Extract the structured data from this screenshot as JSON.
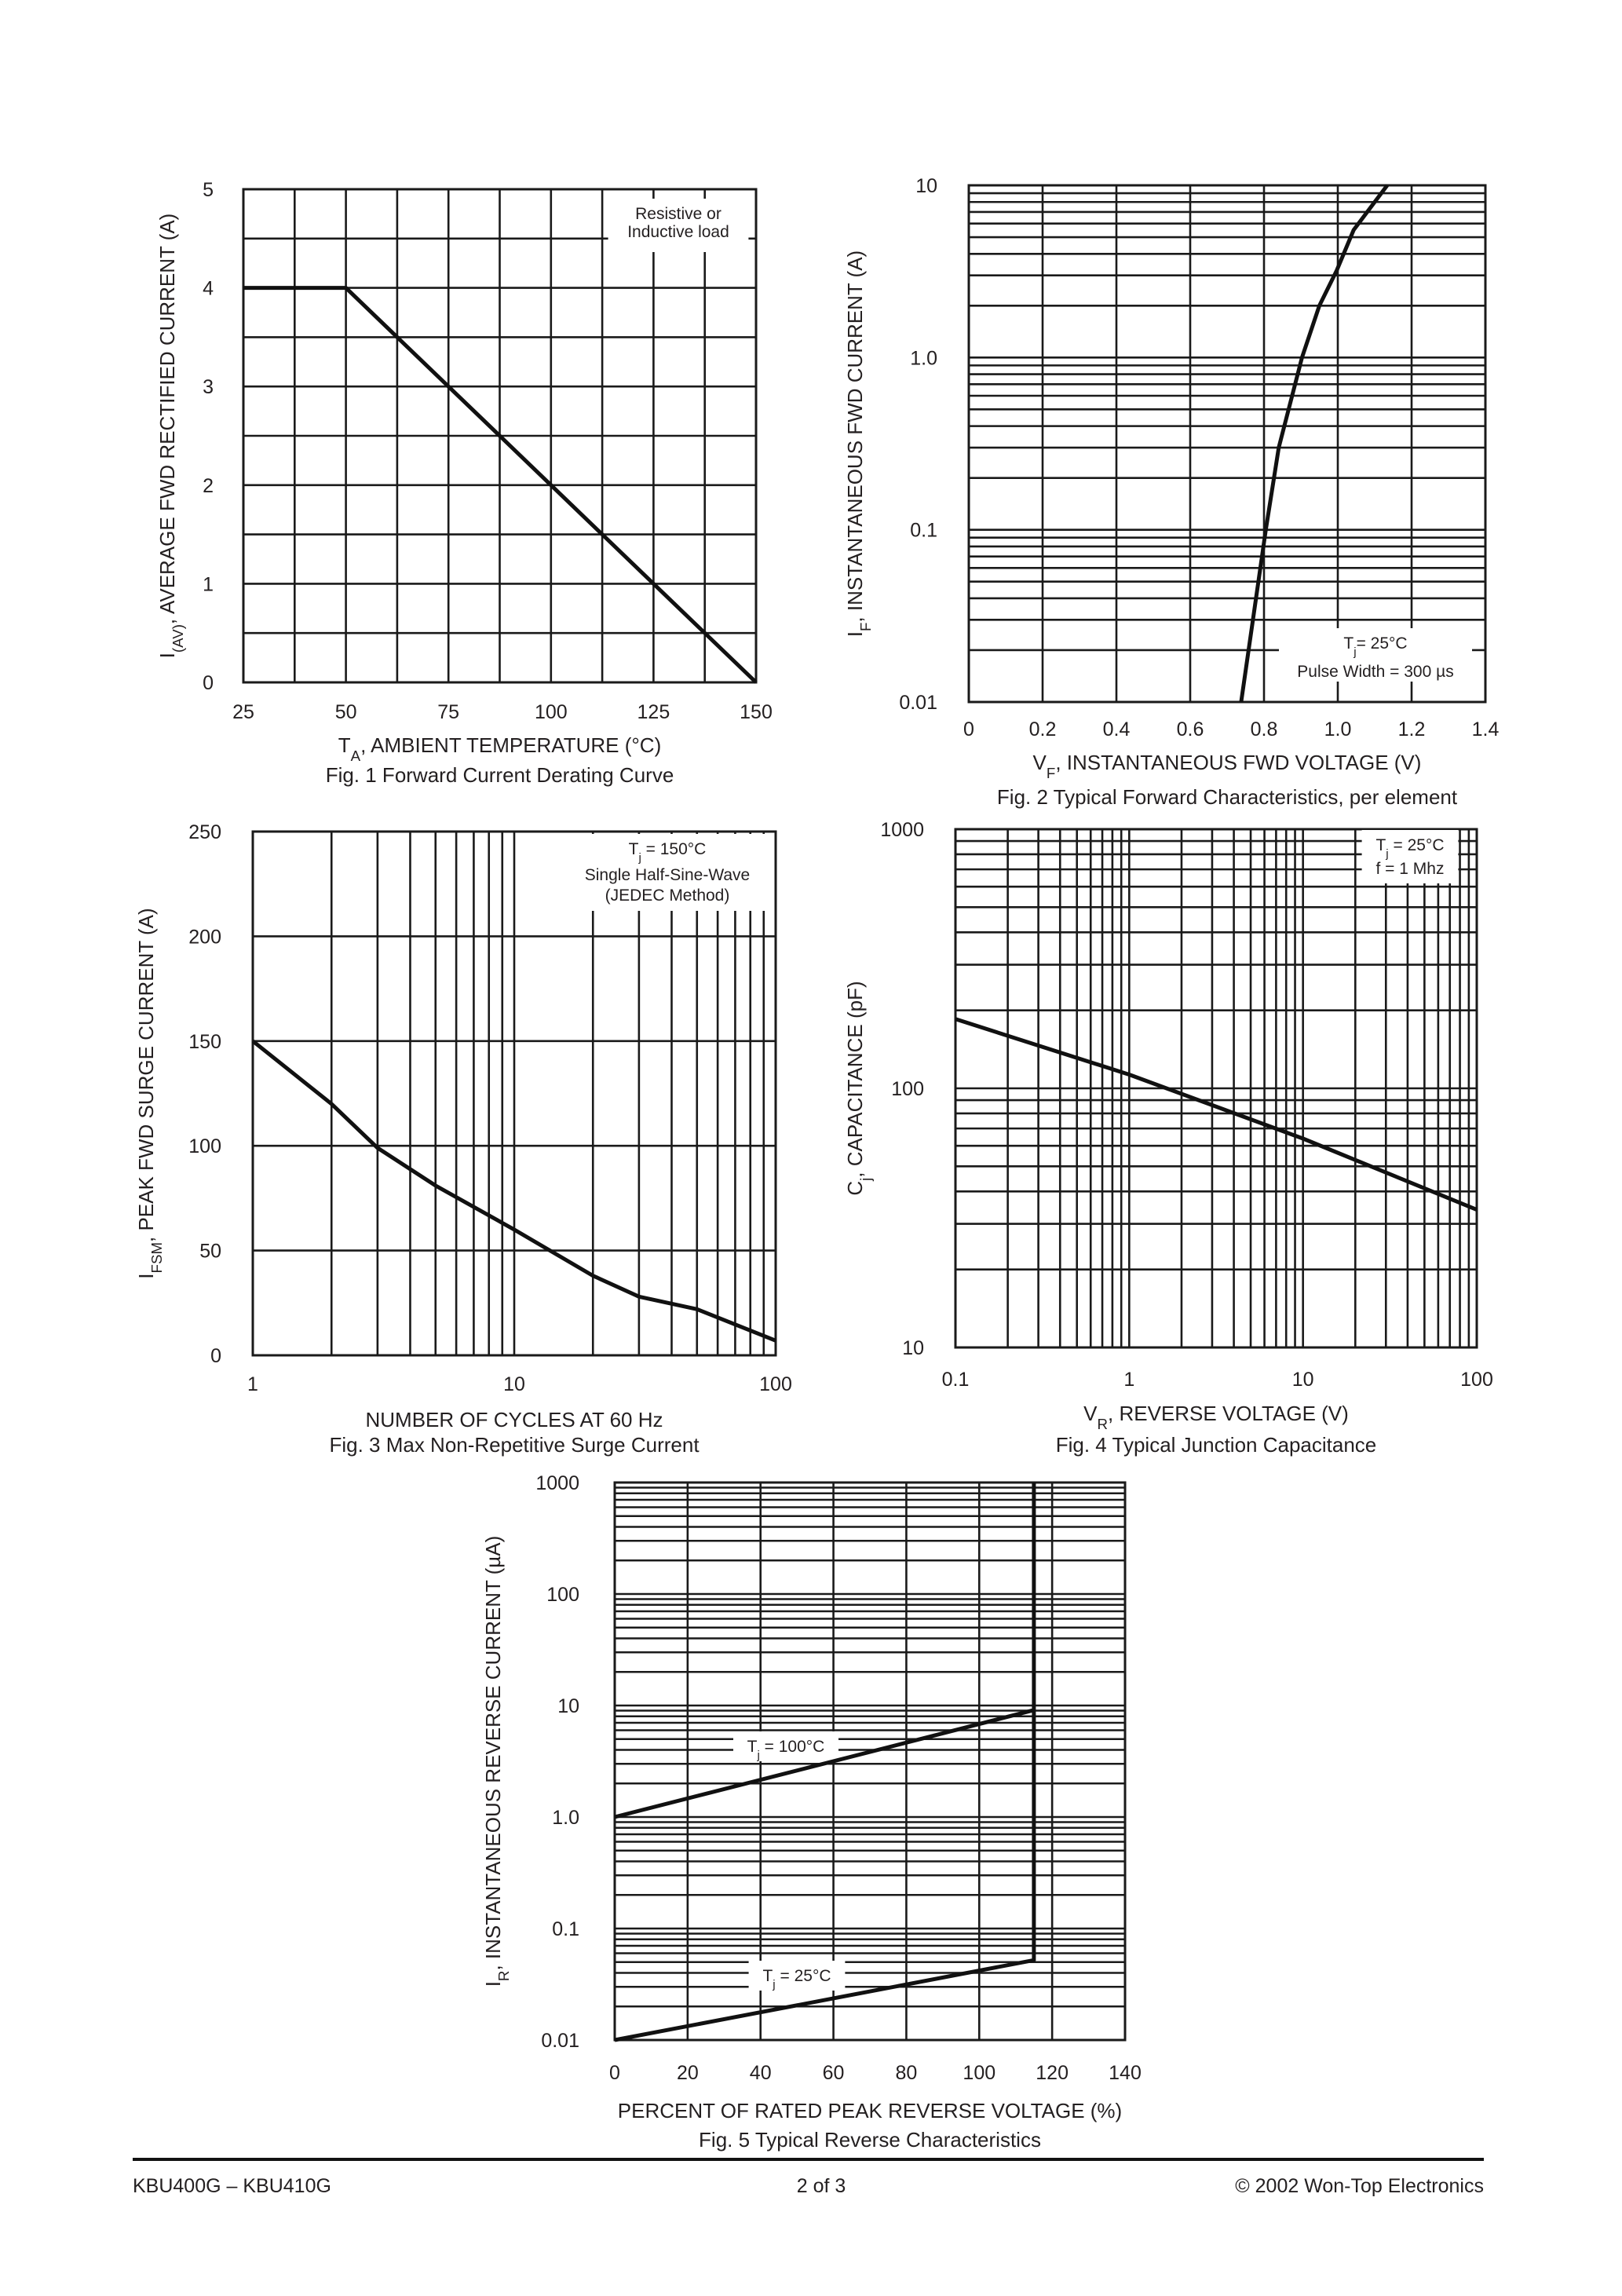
{
  "colors": {
    "ink": "#231f20",
    "grid": "#1a1a1a",
    "curve": "#111111"
  },
  "chart_data": [
    {
      "type": "line",
      "title": "Fig. 1  Forward Current Derating Curve",
      "xlabel": {
        "sym": "T",
        "sub": "A",
        "text": ", AMBIENT TEMPERATURE (°C)"
      },
      "ylabel": {
        "sym": "I",
        "sub": "(AV)",
        "text": ", AVERAGE FWD RECTIFIED CURRENT (A)"
      },
      "xscale": "linear",
      "yscale": "linear",
      "xlim": [
        25,
        150
      ],
      "ylim": [
        0,
        5
      ],
      "grid": true,
      "xticks": [
        {
          "v": 25,
          "label": "25"
        },
        {
          "v": 50,
          "label": "50"
        },
        {
          "v": 75,
          "label": "75"
        },
        {
          "v": 100,
          "label": "100"
        },
        {
          "v": 125,
          "label": "125"
        },
        {
          "v": 150,
          "label": "150"
        }
      ],
      "yticks": [
        {
          "v": 0,
          "label": "0"
        },
        {
          "v": 1,
          "label": "1"
        },
        {
          "v": 2,
          "label": "2"
        },
        {
          "v": 3,
          "label": "3"
        },
        {
          "v": 4,
          "label": "4"
        },
        {
          "v": 5,
          "label": "5"
        }
      ],
      "annotations": [
        {
          "lines": [
            {
              "text": "Resistive or"
            },
            {
              "text": "Inductive load"
            }
          ]
        }
      ],
      "series": [
        {
          "x": [
            25,
            50,
            150
          ],
          "y": [
            4,
            4,
            0
          ]
        }
      ]
    },
    {
      "type": "line",
      "title": "Fig. 2  Typical Forward Characteristics, per element",
      "xlabel": {
        "sym": "V",
        "sub": "F",
        "text": ", INSTANTANEOUS FWD VOLTAGE (V)"
      },
      "ylabel": {
        "sym": "I",
        "sub": "F",
        "text": ", INSTANTANEOUS FWD CURRENT (A)"
      },
      "xscale": "linear",
      "yscale": "log",
      "xlim": [
        0,
        1.4
      ],
      "ylim": [
        0.01,
        10
      ],
      "grid": true,
      "xticks": [
        {
          "v": 0,
          "label": "0"
        },
        {
          "v": 0.2,
          "label": "0.2"
        },
        {
          "v": 0.4,
          "label": "0.4"
        },
        {
          "v": 0.6,
          "label": "0.6"
        },
        {
          "v": 0.8,
          "label": "0.8"
        },
        {
          "v": 1.0,
          "label": "1.0"
        },
        {
          "v": 1.2,
          "label": "1.2"
        },
        {
          "v": 1.4,
          "label": "1.4"
        }
      ],
      "yticks": [
        {
          "v": 0.01,
          "label": "0.01"
        },
        {
          "v": 0.1,
          "label": "0.1"
        },
        {
          "v": 1,
          "label": "1.0"
        },
        {
          "v": 10,
          "label": "10"
        }
      ],
      "annotations": [
        {
          "lines": [
            {
              "text": "T",
              "sub": "j",
              "rest": "= 25°C"
            },
            {
              "text": "Pulse Width = 300 µs"
            }
          ]
        }
      ],
      "series": [
        {
          "x": [
            0.738,
            0.77,
            0.805,
            0.84,
            0.903,
            0.95,
            0.997,
            1.043,
            1.134
          ],
          "y": [
            0.01,
            0.03,
            0.1,
            0.3,
            1,
            2,
            3.2,
            5.5,
            10
          ]
        }
      ]
    },
    {
      "type": "line",
      "title": "Fig. 3  Max Non-Repetitive Surge Current",
      "xlabel": {
        "sym": "",
        "sub": "",
        "text": "NUMBER OF CYCLES AT 60 Hz"
      },
      "ylabel": {
        "sym": "I",
        "sub": "FSM",
        "text": ", PEAK FWD SURGE CURRENT (A)"
      },
      "xscale": "log",
      "yscale": "linear",
      "xlim": [
        1,
        100
      ],
      "ylim": [
        0,
        250
      ],
      "grid": true,
      "xticks": [
        {
          "v": 1,
          "label": "1"
        },
        {
          "v": 10,
          "label": "10"
        },
        {
          "v": 100,
          "label": "100"
        }
      ],
      "yticks": [
        {
          "v": 0,
          "label": "0"
        },
        {
          "v": 50,
          "label": "50"
        },
        {
          "v": 100,
          "label": "100"
        },
        {
          "v": 150,
          "label": "150"
        },
        {
          "v": 200,
          "label": "200"
        },
        {
          "v": 250,
          "label": "250"
        }
      ],
      "annotations": [
        {
          "lines": [
            {
              "text": "T",
              "sub": "j",
              "rest": " = 150°C"
            },
            {
              "text": "Single Half-Sine-Wave"
            },
            {
              "text": "(JEDEC Method)"
            }
          ]
        }
      ],
      "series": [
        {
          "x": [
            1,
            2,
            3,
            5,
            10,
            20,
            30,
            50,
            100
          ],
          "y": [
            150,
            120,
            99,
            81,
            60,
            38,
            28,
            22,
            7
          ]
        }
      ]
    },
    {
      "type": "line",
      "title": "Fig. 4  Typical Junction Capacitance",
      "xlabel": {
        "sym": "V",
        "sub": "R",
        "text": ", REVERSE VOLTAGE (V)"
      },
      "ylabel": {
        "sym": "C",
        "sub": "j",
        "text": ", CAPACITANCE (pF)"
      },
      "xscale": "log",
      "yscale": "log",
      "xlim": [
        0.1,
        100
      ],
      "ylim": [
        10,
        1000
      ],
      "grid": true,
      "xticks": [
        {
          "v": 0.1,
          "label": "0.1"
        },
        {
          "v": 1,
          "label": "1"
        },
        {
          "v": 10,
          "label": "10"
        },
        {
          "v": 100,
          "label": "100"
        }
      ],
      "yticks": [
        {
          "v": 10,
          "label": "10"
        },
        {
          "v": 100,
          "label": "100"
        },
        {
          "v": 1000,
          "label": "1000"
        }
      ],
      "annotations": [
        {
          "lines": [
            {
              "text": "T",
              "sub": "j",
              "rest": " = 25°C"
            },
            {
              "text": "f = 1 Mhz"
            }
          ]
        }
      ],
      "series": [
        {
          "x": [
            0.1,
            1,
            10,
            100
          ],
          "y": [
            185,
            113,
            64,
            34
          ]
        }
      ]
    },
    {
      "type": "line",
      "title": "Fig. 5  Typical Reverse Characteristics",
      "xlabel": {
        "sym": "",
        "sub": "",
        "text": "PERCENT OF RATED PEAK REVERSE VOLTAGE (%)"
      },
      "ylabel": {
        "sym": "I",
        "sub": "R",
        "text": ", INSTANTANEOUS REVERSE CURRENT (µA)"
      },
      "xscale": "linear",
      "yscale": "log",
      "xlim": [
        0,
        140
      ],
      "ylim": [
        0.01,
        1000
      ],
      "grid": true,
      "xticks": [
        {
          "v": 0,
          "label": "0"
        },
        {
          "v": 20,
          "label": "20"
        },
        {
          "v": 40,
          "label": "40"
        },
        {
          "v": 60,
          "label": "60"
        },
        {
          "v": 80,
          "label": "80"
        },
        {
          "v": 100,
          "label": "100"
        },
        {
          "v": 120,
          "label": "120"
        },
        {
          "v": 140,
          "label": "140"
        }
      ],
      "yticks": [
        {
          "v": 0.01,
          "label": "0.01"
        },
        {
          "v": 0.1,
          "label": "0.1"
        },
        {
          "v": 1,
          "label": "1.0"
        },
        {
          "v": 10,
          "label": "10"
        },
        {
          "v": 100,
          "label": "100"
        },
        {
          "v": 1000,
          "label": "1000"
        }
      ],
      "annotations": [
        {
          "lines": [
            {
              "text": "T",
              "sub": "j",
              "rest": " = 100°C"
            }
          ]
        },
        {
          "lines": [
            {
              "text": "T",
              "sub": "j",
              "rest": " = 25°C"
            }
          ]
        }
      ],
      "series": [
        {
          "x": [
            0,
            115
          ],
          "y": [
            1.0,
            9.1
          ]
        },
        {
          "x": [
            0,
            115,
            115
          ],
          "y": [
            0.01,
            0.052,
            1000
          ]
        }
      ]
    }
  ],
  "footer": {
    "left": "KBU400G – KBU410G",
    "center": "2 of 3",
    "right": "© 2002 Won-Top Electronics"
  }
}
